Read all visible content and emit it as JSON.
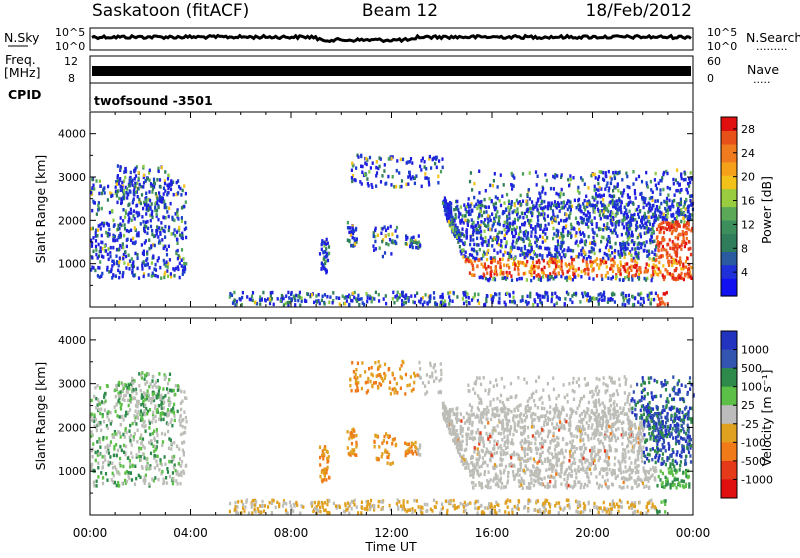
{
  "header": {
    "station": "Saskatoon (fitACF)",
    "beam": "Beam 12",
    "date": "18/Feb/2012"
  },
  "noise_panel": {
    "left_label": "N.Sky",
    "right_label": "N.Search",
    "right_dots": ".........",
    "left_ticks": [
      "10^5",
      "10^0"
    ],
    "right_ticks": [
      "10^5",
      "10^0"
    ]
  },
  "freq_panel": {
    "left_label_1": "Freq.",
    "left_label_2": "[MHz]",
    "left_ticks": [
      "12",
      "8"
    ],
    "right_ticks": [
      "60",
      "0"
    ],
    "right_label": "Nave",
    "right_dots": "....."
  },
  "cpid": {
    "label": "CPID",
    "value": "twofsound -3501"
  },
  "colors": {
    "power": [
      "#2020e0",
      "#1a3fc8",
      "#2f7d5a",
      "#4aa05a",
      "#88cc44",
      "#f2c21a",
      "#f59a1a",
      "#f0681e",
      "#e53a1a",
      "#e01010"
    ],
    "velocity": [
      "#2233c0",
      "#3355b0",
      "#2e8a4a",
      "#5cc048",
      "#bcbcbc",
      "#e0a020",
      "#f07a18",
      "#e43a1a",
      "#e01010"
    ],
    "ground": "#bdbdb8"
  },
  "chart_data": [
    {
      "type": "heatmap",
      "ylabel": "Slant Range [km]",
      "xlim": [
        "00:00",
        "24:00"
      ],
      "ylim": [
        0,
        4500
      ],
      "yticks": [
        "1000",
        "2000",
        "3000",
        "4000"
      ],
      "colorbar": {
        "label": "Power [dB]",
        "range": [
          0,
          30
        ],
        "ticks": [
          "4",
          "8",
          "12",
          "16",
          "20",
          "24",
          "28"
        ]
      }
    },
    {
      "type": "heatmap",
      "ylabel": "Slant Range [km]",
      "xlabel": "Time UT",
      "xlim": [
        "00:00",
        "24:00"
      ],
      "ylim": [
        0,
        4500
      ],
      "yticks": [
        "1000",
        "2000",
        "3000",
        "4000"
      ],
      "xticks": [
        "00:00",
        "04:00",
        "08:00",
        "12:00",
        "16:00",
        "20:00",
        "00:00"
      ],
      "colorbar": {
        "label": "Velocity [m s⁻¹]",
        "ticks": [
          "1000",
          "500",
          "100",
          "25",
          "-25",
          "-100",
          "-500",
          "-1000"
        ]
      }
    }
  ]
}
